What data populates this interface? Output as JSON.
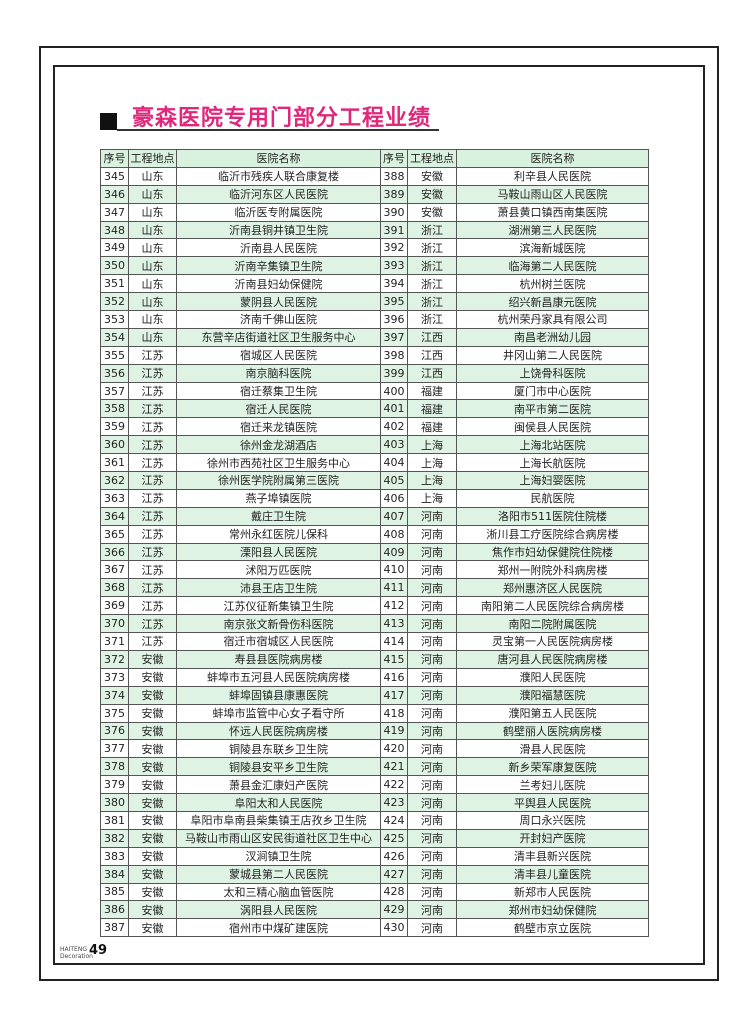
{
  "title": "豪森医院专用门部分工程业绩",
  "title_color": "#e0287a",
  "header": [
    "序号",
    "工程地点",
    "医院名称",
    "序号",
    "工程地点",
    "医院名称"
  ],
  "left": [
    [
      "345",
      "山东",
      "临沂市残疾人联合康复楼"
    ],
    [
      "346",
      "山东",
      "临沂河东区人民医院"
    ],
    [
      "347",
      "山东",
      "临沂医专附属医院"
    ],
    [
      "348",
      "山东",
      "沂南县铜井镇卫生院"
    ],
    [
      "349",
      "山东",
      "沂南县人民医院"
    ],
    [
      "350",
      "山东",
      "沂南辛集镇卫生院"
    ],
    [
      "351",
      "山东",
      "沂南县妇幼保健院"
    ],
    [
      "352",
      "山东",
      "蒙阴县人民医院"
    ],
    [
      "353",
      "山东",
      "济南千佛山医院"
    ],
    [
      "354",
      "山东",
      "东营辛店街道社区卫生服务中心"
    ],
    [
      "355",
      "江苏",
      "宿城区人民医院"
    ],
    [
      "356",
      "江苏",
      "南京脑科医院"
    ],
    [
      "357",
      "江苏",
      "宿迁蔡集卫生院"
    ],
    [
      "358",
      "江苏",
      "宿迁人民医院"
    ],
    [
      "359",
      "江苏",
      "宿迁来龙镇医院"
    ],
    [
      "360",
      "江苏",
      "徐州金龙湖酒店"
    ],
    [
      "361",
      "江苏",
      "徐州市西苑社区卫生服务中心"
    ],
    [
      "362",
      "江苏",
      "徐州医学院附属第三医院"
    ],
    [
      "363",
      "江苏",
      "燕子埠镇医院"
    ],
    [
      "364",
      "江苏",
      "戴庄卫生院"
    ],
    [
      "365",
      "江苏",
      "常州永红医院儿保科"
    ],
    [
      "366",
      "江苏",
      "溧阳县人民医院"
    ],
    [
      "367",
      "江苏",
      "沭阳万匹医院"
    ],
    [
      "368",
      "江苏",
      "沛县王店卫生院"
    ],
    [
      "369",
      "江苏",
      "江苏仪征新集镇卫生院"
    ],
    [
      "370",
      "江苏",
      "南京张文新骨伤科医院"
    ],
    [
      "371",
      "江苏",
      "宿迁市宿城区人民医院"
    ],
    [
      "372",
      "安徽",
      "寿县县医院病房楼"
    ],
    [
      "373",
      "安徽",
      "蚌埠市五河县人民医院病房楼"
    ],
    [
      "374",
      "安徽",
      "蚌埠固镇县康惠医院"
    ],
    [
      "375",
      "安徽",
      "蚌埠市监管中心女子看守所"
    ],
    [
      "376",
      "安徽",
      "怀远人民医院病房楼"
    ],
    [
      "377",
      "安徽",
      "铜陵县东联乡卫生院"
    ],
    [
      "378",
      "安徽",
      "铜陵县安平乡卫生院"
    ],
    [
      "379",
      "安徽",
      "萧县金汇康妇产医院"
    ],
    [
      "380",
      "安徽",
      "阜阳太和人民医院"
    ],
    [
      "381",
      "安徽",
      "阜阳市阜南县柴集镇王店孜乡卫生院"
    ],
    [
      "382",
      "安徽",
      "马鞍山市雨山区安民街道社区卫生中心"
    ],
    [
      "383",
      "安徽",
      "汊涧镇卫生院"
    ],
    [
      "384",
      "安徽",
      "蒙城县第二人民医院"
    ],
    [
      "385",
      "安徽",
      "太和三精心脑血管医院"
    ],
    [
      "386",
      "安徽",
      "涡阳县人民医院"
    ],
    [
      "387",
      "安徽",
      "宿州市中煤矿建医院"
    ]
  ],
  "right": [
    [
      "388",
      "安徽",
      "利辛县人民医院"
    ],
    [
      "389",
      "安徽",
      "马鞍山雨山区人民医院"
    ],
    [
      "390",
      "安徽",
      "萧县黄口镇西南集医院"
    ],
    [
      "391",
      "浙江",
      "湖洲第三人民医院"
    ],
    [
      "392",
      "浙江",
      "滨海新城医院"
    ],
    [
      "393",
      "浙江",
      "临海第二人民医院"
    ],
    [
      "394",
      "浙江",
      "杭州树兰医院"
    ],
    [
      "395",
      "浙江",
      "绍兴新昌康元医院"
    ],
    [
      "396",
      "浙江",
      "杭州荣丹家具有限公司"
    ],
    [
      "397",
      "江西",
      "南昌老洲幼儿园"
    ],
    [
      "398",
      "江西",
      "井冈山第二人民医院"
    ],
    [
      "399",
      "江西",
      "上饶骨科医院"
    ],
    [
      "400",
      "福建",
      "厦门市中心医院"
    ],
    [
      "401",
      "福建",
      "南平市第二医院"
    ],
    [
      "402",
      "福建",
      "闽侯县人民医院"
    ],
    [
      "403",
      "上海",
      "上海北站医院"
    ],
    [
      "404",
      "上海",
      "上海长航医院"
    ],
    [
      "405",
      "上海",
      "上海妇婴医院"
    ],
    [
      "406",
      "上海",
      "民航医院"
    ],
    [
      "407",
      "河南",
      "洛阳市511医院住院楼"
    ],
    [
      "408",
      "河南",
      "淅川县工疗医院综合病房楼"
    ],
    [
      "409",
      "河南",
      "焦作市妇幼保健院住院楼"
    ],
    [
      "410",
      "河南",
      "郑州一附院外科病房楼"
    ],
    [
      "411",
      "河南",
      "郑州惠济区人民医院"
    ],
    [
      "412",
      "河南",
      "南阳第二人民医院综合病房楼"
    ],
    [
      "413",
      "河南",
      "南阳二院附属医院"
    ],
    [
      "414",
      "河南",
      "灵宝第一人民医院病房楼"
    ],
    [
      "415",
      "河南",
      "唐河县人民医院病房楼"
    ],
    [
      "416",
      "河南",
      "濮阳人民医院"
    ],
    [
      "417",
      "河南",
      "濮阳福慧医院"
    ],
    [
      "418",
      "河南",
      "濮阳第五人民医院"
    ],
    [
      "419",
      "河南",
      "鹤壁丽人医院病房楼"
    ],
    [
      "420",
      "河南",
      "滑县人民医院"
    ],
    [
      "421",
      "河南",
      "新乡荣军康复医院"
    ],
    [
      "422",
      "河南",
      "兰考妇儿医院"
    ],
    [
      "423",
      "河南",
      "平舆县人民医院"
    ],
    [
      "424",
      "河南",
      "周口永兴医院"
    ],
    [
      "425",
      "河南",
      "开封妇产医院"
    ],
    [
      "426",
      "河南",
      "清丰县新兴医院"
    ],
    [
      "427",
      "河南",
      "清丰县儿童医院"
    ],
    [
      "428",
      "河南",
      "新郑市人民医院"
    ],
    [
      "429",
      "河南",
      "郑州市妇幼保健院"
    ],
    [
      "430",
      "河南",
      "鹤壁市京立医院"
    ]
  ],
  "footer": {
    "brand_line1": "HAITENG",
    "brand_line2": "Decoration",
    "page_number": "49"
  }
}
